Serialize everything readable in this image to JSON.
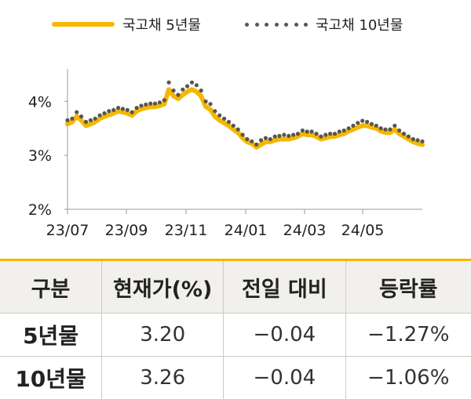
{
  "legend": {
    "series1": "국고채 5년물",
    "series2": "국고채 10년물"
  },
  "chart_data": {
    "type": "line",
    "y_tick_labels": [
      "2%",
      "3%",
      "4%"
    ],
    "y_ticks": [
      2,
      3,
      4
    ],
    "ylim": [
      2,
      4.6
    ],
    "x_tick_labels": [
      "23/07",
      "23/09",
      "23/11",
      "24/01",
      "24/03",
      "24/05"
    ],
    "grid": false,
    "series": [
      {
        "name": "국고채 5년물",
        "style": "solid",
        "color": "#F5B700",
        "values": [
          3.58,
          3.62,
          3.72,
          3.65,
          3.55,
          3.58,
          3.62,
          3.68,
          3.72,
          3.75,
          3.78,
          3.82,
          3.8,
          3.78,
          3.74,
          3.82,
          3.86,
          3.88,
          3.9,
          3.9,
          3.92,
          3.95,
          4.22,
          4.1,
          4.05,
          4.12,
          4.18,
          4.22,
          4.18,
          4.1,
          3.9,
          3.85,
          3.72,
          3.65,
          3.6,
          3.55,
          3.48,
          3.42,
          3.32,
          3.25,
          3.22,
          3.15,
          3.2,
          3.25,
          3.25,
          3.28,
          3.3,
          3.3,
          3.3,
          3.32,
          3.35,
          3.4,
          3.38,
          3.38,
          3.35,
          3.3,
          3.32,
          3.35,
          3.35,
          3.38,
          3.4,
          3.45,
          3.48,
          3.52,
          3.55,
          3.55,
          3.52,
          3.5,
          3.45,
          3.42,
          3.42,
          3.48,
          3.4,
          3.35,
          3.3,
          3.25,
          3.22,
          3.2
        ]
      },
      {
        "name": "국고채 10년물",
        "style": "dotted",
        "color": "#595650",
        "values": [
          3.65,
          3.68,
          3.8,
          3.72,
          3.62,
          3.65,
          3.68,
          3.74,
          3.78,
          3.82,
          3.84,
          3.88,
          3.86,
          3.84,
          3.8,
          3.88,
          3.92,
          3.94,
          3.96,
          3.96,
          3.98,
          4.02,
          4.35,
          4.2,
          4.12,
          4.22,
          4.28,
          4.35,
          4.3,
          4.2,
          4.0,
          3.95,
          3.82,
          3.74,
          3.68,
          3.62,
          3.55,
          3.48,
          3.38,
          3.3,
          3.26,
          3.2,
          3.28,
          3.32,
          3.3,
          3.35,
          3.36,
          3.38,
          3.36,
          3.38,
          3.4,
          3.46,
          3.44,
          3.44,
          3.4,
          3.35,
          3.38,
          3.4,
          3.4,
          3.44,
          3.46,
          3.5,
          3.55,
          3.6,
          3.64,
          3.62,
          3.58,
          3.55,
          3.5,
          3.48,
          3.48,
          3.55,
          3.46,
          3.4,
          3.35,
          3.3,
          3.28,
          3.26
        ]
      }
    ]
  },
  "table": {
    "headers": [
      "구분",
      "현재가(%)",
      "전일 대비",
      "등락률"
    ],
    "rows": [
      {
        "label": "5년물",
        "price": "3.20",
        "change": "−0.04",
        "rate": "−1.27%"
      },
      {
        "label": "10년물",
        "price": "3.26",
        "change": "−0.04",
        "rate": "−1.06%"
      }
    ]
  }
}
